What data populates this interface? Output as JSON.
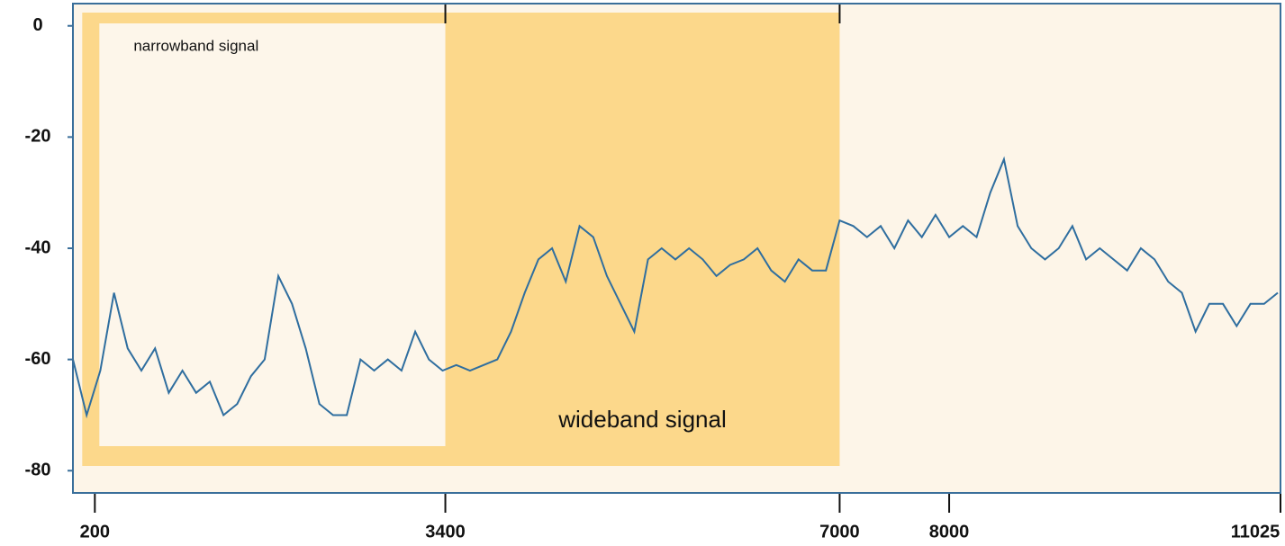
{
  "chart_data": {
    "type": "line",
    "bands": [
      {
        "label": "wideband signal",
        "range": [
          200,
          7000
        ],
        "color": "#fcd88b"
      },
      {
        "label": "narrowband signal",
        "range": [
          200,
          3400
        ],
        "color": "#fdf6ea"
      }
    ],
    "x": [
      0,
      125,
      250,
      375,
      500,
      625,
      750,
      875,
      1000,
      1125,
      1250,
      1375,
      1500,
      1625,
      1750,
      1875,
      2000,
      2125,
      2250,
      2375,
      2500,
      2625,
      2750,
      2875,
      3000,
      3125,
      3250,
      3375,
      3500,
      3625,
      3750,
      3875,
      4000,
      4125,
      4250,
      4375,
      4500,
      4625,
      4750,
      4875,
      5000,
      5125,
      5250,
      5375,
      5500,
      5625,
      5750,
      5875,
      6000,
      6125,
      6250,
      6375,
      6500,
      6625,
      6750,
      6875,
      7000,
      7125,
      7250,
      7375,
      7500,
      7625,
      7750,
      7875,
      8000,
      8125,
      8250,
      8375,
      8500,
      8625,
      8750,
      8875,
      9000,
      9125,
      9250,
      9375,
      9500,
      9625,
      9750,
      9875,
      10000,
      10125,
      10250,
      10375,
      10500,
      10625,
      10750,
      10875,
      11000
    ],
    "series": [
      {
        "color": "#2f6e9f",
        "values": [
          -60,
          -70,
          -62,
          -48,
          -58,
          -62,
          -58,
          -66,
          -62,
          -66,
          -64,
          -70,
          -68,
          -63,
          -60,
          -45,
          -50,
          -58,
          -68,
          -70,
          -70,
          -60,
          -62,
          -60,
          -62,
          -55,
          -60,
          -62,
          -61,
          -62,
          -61,
          -60,
          -55,
          -48,
          -42,
          -40,
          -46,
          -36,
          -38,
          -45,
          -50,
          -55,
          -42,
          -40,
          -42,
          -40,
          -42,
          -45,
          -43,
          -42,
          -40,
          -44,
          -46,
          -42,
          -44,
          -44,
          -35,
          -36,
          -38,
          -36,
          -40,
          -35,
          -38,
          -34,
          -38,
          -36,
          -38,
          -30,
          -24,
          -36,
          -40,
          -42,
          -40,
          -36,
          -42,
          -40,
          -42,
          -44,
          -40,
          -42,
          -46,
          -48,
          -55,
          -50,
          -50,
          -54,
          -50,
          -50,
          -48
        ]
      }
    ],
    "xlim": [
      0,
      11025
    ],
    "xticks": [
      200,
      3400,
      7000,
      8000,
      11025
    ],
    "ylim": [
      -84,
      4
    ],
    "yticks": [
      0,
      -20,
      -40,
      -60,
      -80
    ],
    "background": "#fdf5e8"
  }
}
